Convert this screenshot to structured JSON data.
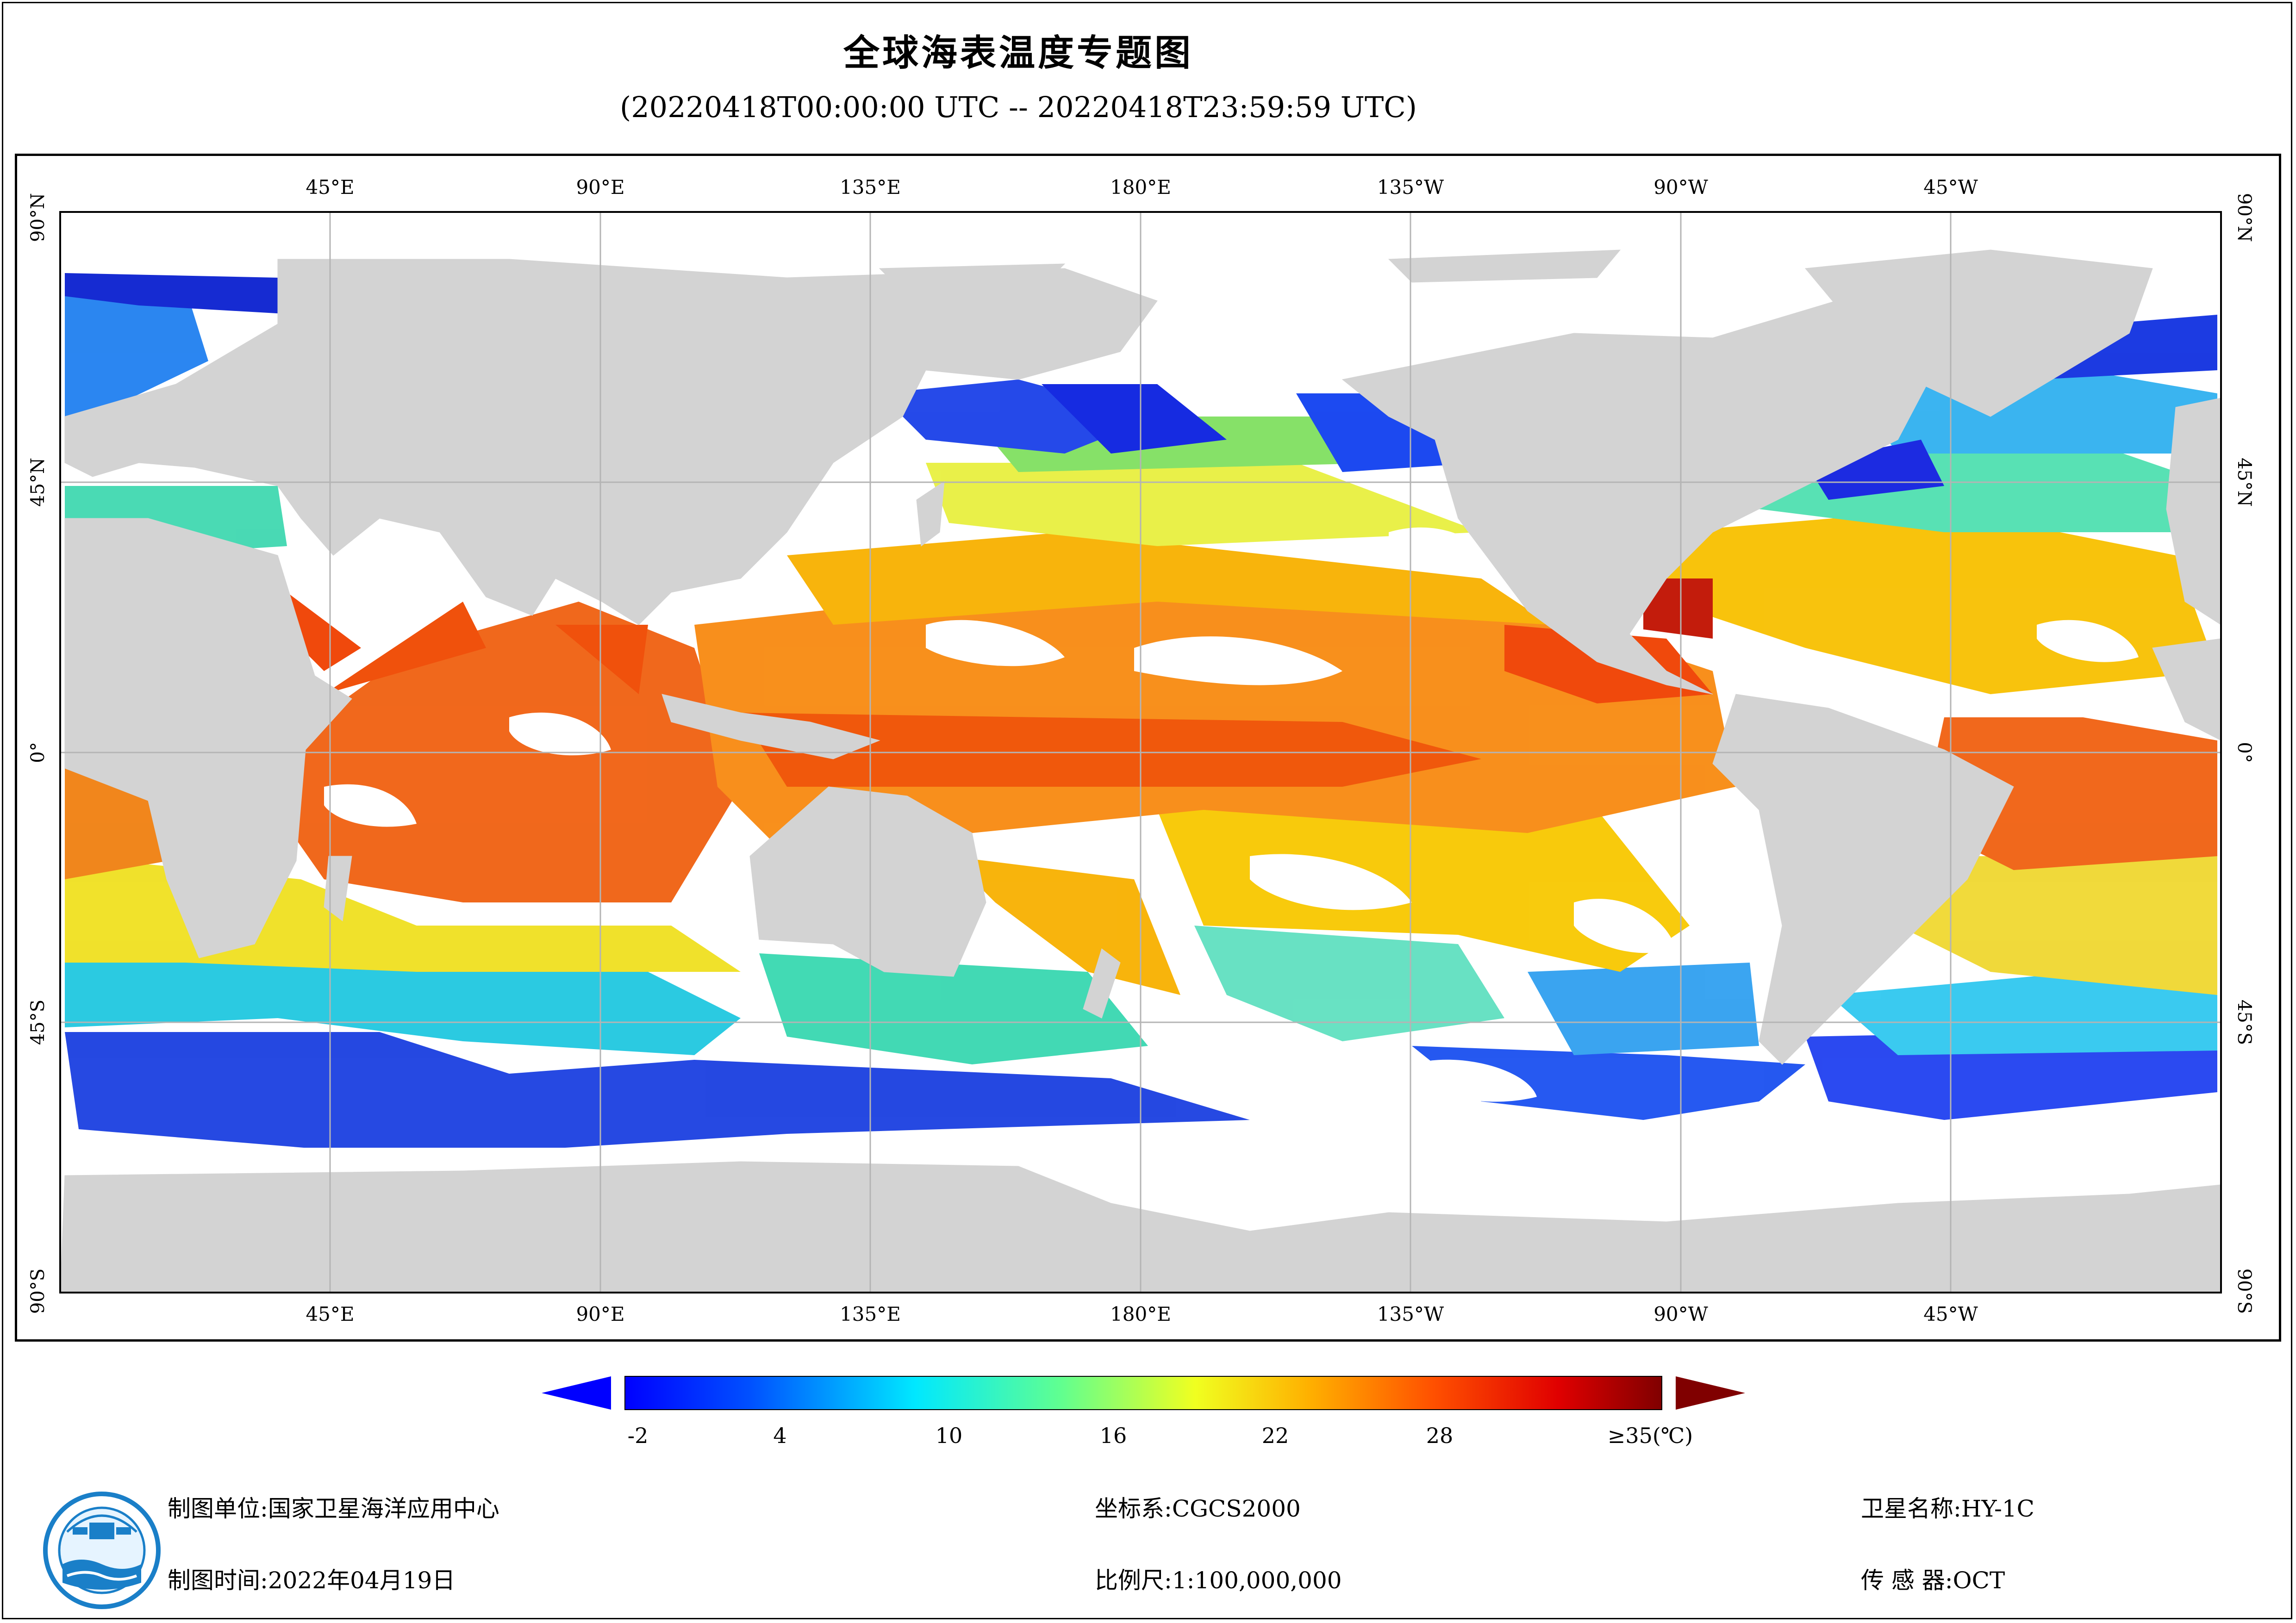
{
  "title": "全球海表温度专题图",
  "subtitle": "(20220418T00:00:00 UTC -- 20220418T23:59:59 UTC)",
  "map": {
    "lon_labels": [
      "45°E",
      "90°E",
      "135°E",
      "180°E",
      "135°W",
      "90°W",
      "45°W"
    ],
    "lat_labels": [
      "90°N",
      "45°N",
      "0°",
      "45°S",
      "90°S"
    ],
    "land_color": "#d3d3d3",
    "no_data_color": "#ffffff",
    "grid_color": "#b0b0b0"
  },
  "colorbar": {
    "ticks": [
      "-2",
      "4",
      "10",
      "16",
      "22",
      "28",
      "≥35(℃)"
    ],
    "min_color": "#0000ff",
    "max_color": "#800000"
  },
  "footer": {
    "org_label": "制图单位:",
    "org": "国家卫星海洋应用中心",
    "date_label": "制图时间:",
    "date": "2022年04月19日",
    "crs_label": "坐标系:",
    "crs": "CGCS2000",
    "scale_label": "比例尺:",
    "scale": "1:100,000,000",
    "satellite_label": "卫星名称:",
    "satellite": "HY-1C",
    "sensor_label": "传 感 器:",
    "sensor": "OCT"
  }
}
